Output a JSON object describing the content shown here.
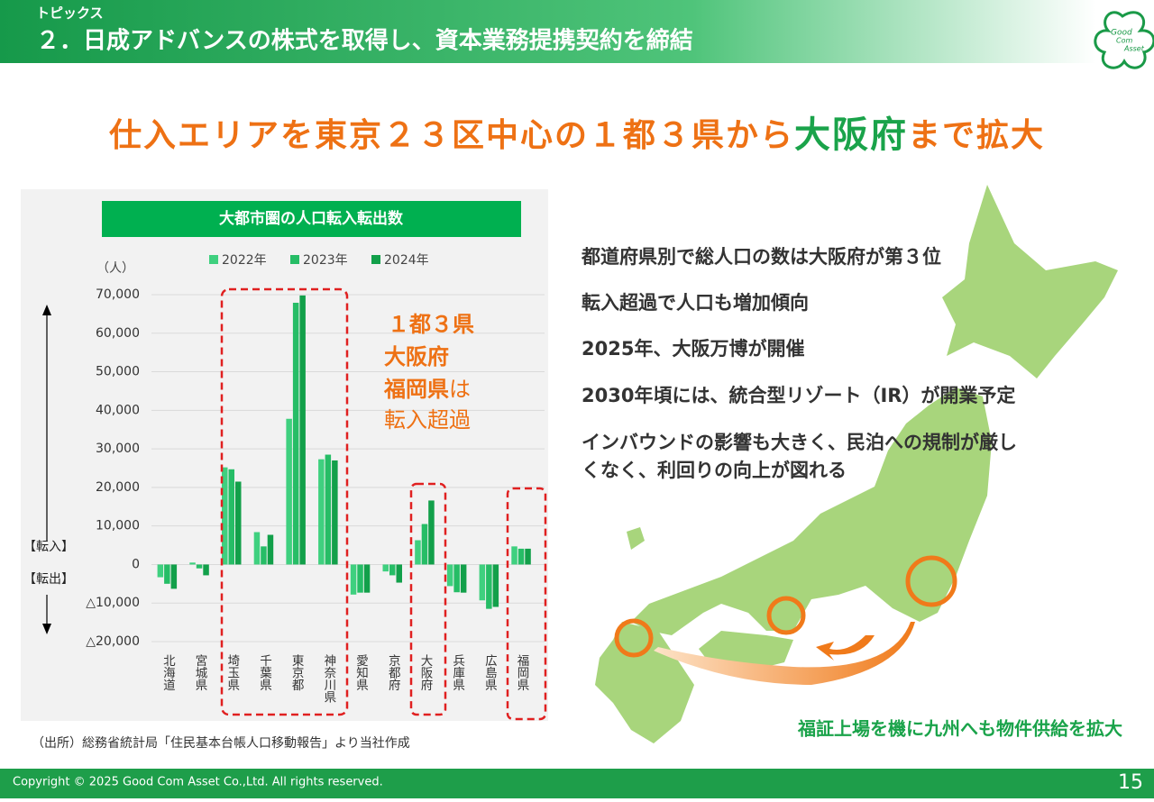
{
  "header": {
    "kicker": "トピックス",
    "title": "２．日成アドバンスの株式を取得し、資本業務提携契約を締結",
    "logo": [
      "Good",
      "Com",
      "Asset"
    ]
  },
  "headline": [
    "仕入エリアを東京２３区中心の１都３県から",
    "大阪府",
    "まで拡大"
  ],
  "chart_data": {
    "type": "bar",
    "title": "大都市圏の人口転入転出数",
    "y_unit": "（人）",
    "in_label": "【転入】",
    "out_label": "【転出】",
    "categories": [
      "北海道",
      "宮城県",
      "埼玉県",
      "千葉県",
      "東京都",
      "神奈川県",
      "愛知県",
      "京都府",
      "大阪府",
      "兵庫県",
      "広島県",
      "福岡県"
    ],
    "series": [
      {
        "name": "2022年",
        "color": "#3fd07f",
        "values": [
          -3300,
          500,
          25200,
          8400,
          37800,
          27300,
          -7800,
          -1800,
          6300,
          -5600,
          -9300,
          4700
        ]
      },
      {
        "name": "2023年",
        "color": "#26bd66",
        "values": [
          -5000,
          -1000,
          24700,
          4700,
          67900,
          28500,
          -7300,
          -2800,
          10500,
          -7200,
          -11500,
          4100
        ]
      },
      {
        "name": "2024年",
        "color": "#12a04a",
        "values": [
          -6300,
          -2800,
          21500,
          7700,
          69800,
          27000,
          -7300,
          -4700,
          16600,
          -7300,
          -11000,
          4100
        ]
      }
    ],
    "ylim": [
      -20000,
      70000
    ],
    "yticks": [
      {
        "value": -20000,
        "label": "△20,000"
      },
      {
        "value": -10000,
        "label": "△10,000"
      },
      0,
      {
        "value": 10000,
        "label": "10,000"
      },
      {
        "value": 20000,
        "label": "20,000"
      },
      {
        "value": 30000,
        "label": "30,000"
      },
      {
        "value": 40000,
        "label": "40,000"
      },
      {
        "value": 50000,
        "label": "50,000"
      },
      {
        "value": 60000,
        "label": "60,000"
      },
      {
        "value": 70000,
        "label": "70,000"
      }
    ],
    "grid": true,
    "legend": "top",
    "annotation": [
      "１都３県",
      "大阪府",
      "福岡県",
      "は",
      "転入超過"
    ],
    "source": "（出所）総務省統計局「住民基本台帳人口移動報告」より当社作成"
  },
  "bullets": [
    "都道府県別で総人口の数は大阪府が第３位",
    "転入超過で人口も増加傾向",
    "2025年、大阪万博が開催",
    "2030年頃には、統合型リゾート（IR）が開業予定",
    "インバウンドの影響も大きく、民泊への規制が厳し",
    "くなく、利回りの向上が図れる"
  ],
  "map_caption": "福証上場を機に九州へも物件供給を拡大",
  "footer": {
    "copyright": "Copyright © 2025 Good Com Asset Co.,Ltd. All rights reserved.",
    "page": "15"
  }
}
